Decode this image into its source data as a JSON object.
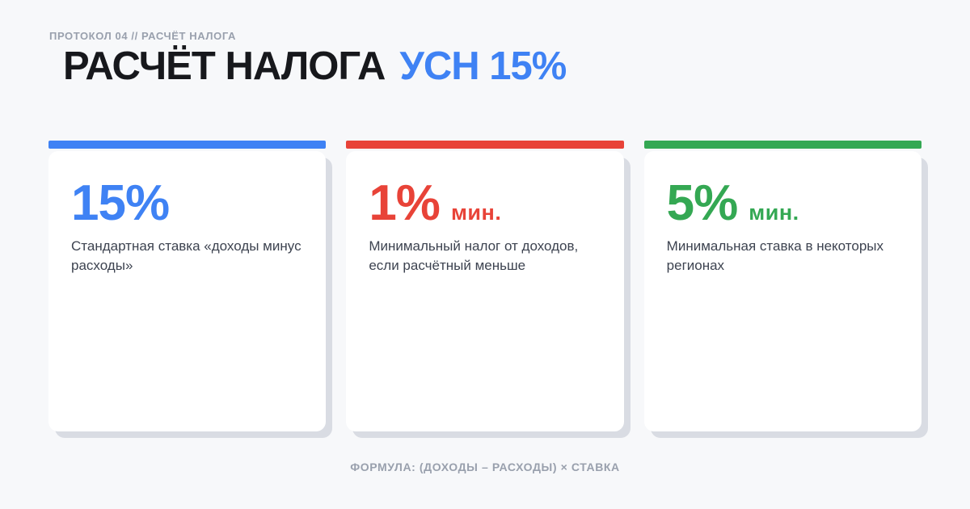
{
  "header": {
    "eyebrow": "ПРОТОКОЛ 04 // РАСЧЁТ НАЛОГА",
    "title_main": "РАСЧЁТ НАЛОГА",
    "title_accent": "УСН 15%"
  },
  "cards": [
    {
      "accent": "#3f82f4",
      "rate": "15%",
      "suffix": "",
      "description": "Стандартная ставка «доходы минус расходы»"
    },
    {
      "accent": "#e84338",
      "rate": "1%",
      "suffix": "мин.",
      "description": "Минимальный налог от доходов, если расчётный меньше"
    },
    {
      "accent": "#34a853",
      "rate": "5%",
      "suffix": "мин.",
      "description": "Минимальная ставка в некоторых регионах"
    }
  ],
  "footer": {
    "formula": "ФОРМУЛА: (ДОХОДЫ – РАСХОДЫ) × СТАВКА"
  },
  "colors": {
    "background": "#f7f8fa",
    "card_background": "#ffffff",
    "card_shadow": "#d9dce3",
    "accent_blue": "#3f82f4",
    "accent_red": "#e84338",
    "accent_green": "#34a853",
    "title_text": "#17181c",
    "muted_text": "#99a0ad",
    "body_text": "#3d4350"
  }
}
